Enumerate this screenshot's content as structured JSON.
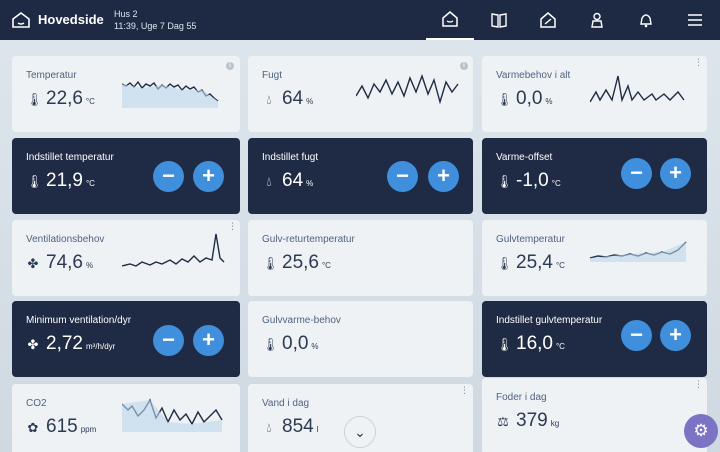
{
  "header": {
    "title": "Hovedside",
    "house": "Hus 2",
    "datetime": "11:39, Uge 7 Dag 55",
    "nav": [
      "home-icon",
      "book-icon",
      "gauge-icon",
      "person-icon",
      "bell-icon",
      "menu-icon"
    ]
  },
  "cards": {
    "temperatur": {
      "label": "Temperatur",
      "value": "22,6",
      "unit": "°C",
      "icon": "thermometer-icon"
    },
    "fugt": {
      "label": "Fugt",
      "value": "64",
      "unit": "%",
      "icon": "humidity-icon"
    },
    "varmebehov": {
      "label": "Varmebehov i alt",
      "value": "0,0",
      "unit": "%",
      "icon": "thermometer-icon"
    },
    "indstillet_temperatur": {
      "label": "Indstillet temperatur",
      "value": "21,9",
      "unit": "°C",
      "icon": "thermometer-icon"
    },
    "indstillet_fugt": {
      "label": "Indstillet fugt",
      "value": "64",
      "unit": "%",
      "icon": "humidity-icon"
    },
    "varme_offset": {
      "label": "Varme-offset",
      "value": "-1,0",
      "unit": "°C",
      "icon": "thermometer-icon"
    },
    "ventilationsbehov": {
      "label": "Ventilationsbehov",
      "value": "74,6",
      "unit": "%",
      "icon": "fan-icon"
    },
    "gulv_retur": {
      "label": "Gulv-returtemperatur",
      "value": "25,6",
      "unit": "°C",
      "icon": "thermometer-icon"
    },
    "gulvtemperatur": {
      "label": "Gulvtemperatur",
      "value": "25,4",
      "unit": "°C",
      "icon": "thermometer-icon"
    },
    "min_ventilation": {
      "label": "Minimum ventilation/dyr",
      "value": "2,72",
      "unit": "m³/h/dyr",
      "icon": "fan-icon"
    },
    "gulvvarme": {
      "label": "Gulvvarme-behov",
      "value": "0,0",
      "unit": "%",
      "icon": "thermometer-icon"
    },
    "indstillet_gulvtemp": {
      "label": "Indstillet gulvtemperatur",
      "value": "16,0",
      "unit": "°C",
      "icon": "thermometer-icon"
    },
    "co2": {
      "label": "CO2",
      "value": "615",
      "unit": "ppm",
      "icon": "co2-icon"
    },
    "vand": {
      "label": "Vand i dag",
      "value": "854",
      "unit": "l",
      "icon": "water-drop-icon"
    },
    "foder": {
      "label": "Foder i dag",
      "value": "379",
      "unit": "kg",
      "icon": "scale-icon"
    }
  },
  "buttons": {
    "minus": "−",
    "plus": "+"
  },
  "colors": {
    "header": "#1e2a44",
    "dark_card": "#1f2a44",
    "accent": "#3f8fdc",
    "fab": "#7b74c4"
  }
}
